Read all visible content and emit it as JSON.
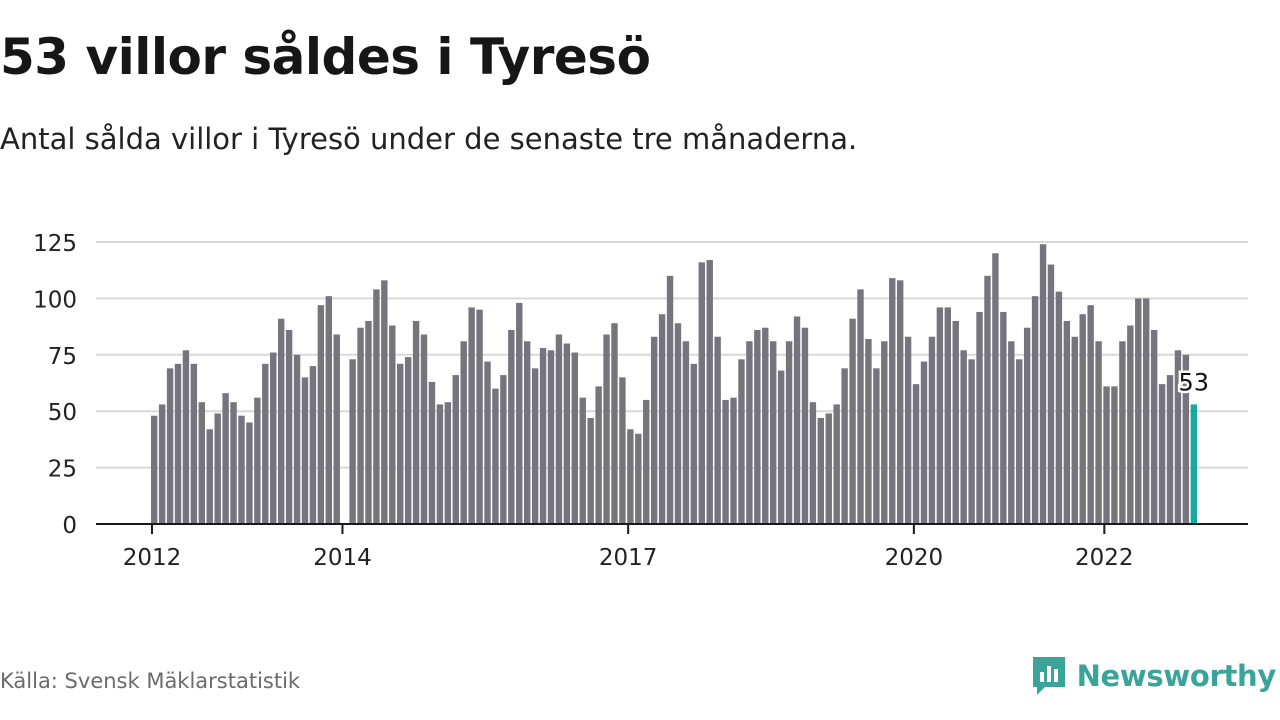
{
  "header": {
    "title": "53 villor såldes i Tyresö",
    "subtitle": "Antal sålda villor i Tyresö under de senaste tre månaderna."
  },
  "footer": {
    "source": "Källa: Svensk Mäklarstatistik",
    "brand": "Newsworthy",
    "brand_color": "#3aa39a"
  },
  "colors": {
    "bar": "#76757d",
    "highlight": "#17a99f",
    "grid": "#d9d9d9",
    "axis": "#1a1a1a"
  },
  "chart_data": {
    "type": "bar",
    "title": "53 villor såldes i Tyresö",
    "subtitle": "Antal sålda villor i Tyresö under de senaste tre månaderna.",
    "ylim": [
      0,
      125
    ],
    "yticks": [
      0,
      25,
      50,
      75,
      100,
      125
    ],
    "grid": true,
    "x_tick_labels": [
      "2012",
      "2014",
      "2017",
      "2020",
      "2022"
    ],
    "x_tick_bar_index": [
      0,
      24,
      60,
      96,
      120
    ],
    "series": [
      {
        "values": [
          48,
          53,
          69,
          71,
          77,
          71,
          54,
          42,
          49,
          58,
          54,
          48,
          45,
          56,
          71,
          76,
          91,
          86,
          75,
          65,
          70,
          97,
          101,
          84,
          0,
          73,
          87,
          90,
          104,
          108,
          88,
          71,
          74,
          90,
          84,
          63,
          53,
          54,
          66,
          81,
          96,
          95,
          72,
          60,
          66,
          86,
          98,
          81,
          69,
          78,
          77,
          84,
          80,
          76,
          56,
          47,
          61,
          84,
          89,
          65,
          42,
          40,
          55,
          83,
          93,
          110,
          89,
          81,
          71,
          116,
          117,
          83,
          55,
          56,
          73,
          81,
          86,
          87,
          81,
          68,
          81,
          92,
          87,
          54,
          47,
          49,
          53,
          69,
          91,
          104,
          82,
          69,
          81,
          109,
          108,
          83,
          62,
          72,
          83,
          96,
          96,
          90,
          77,
          73,
          94,
          110,
          120,
          94,
          81,
          73,
          87,
          101,
          124,
          115,
          103,
          90,
          83,
          93,
          97,
          81,
          61,
          61,
          81,
          88,
          100,
          100,
          86,
          62,
          66,
          77,
          75,
          53
        ]
      }
    ],
    "highlight": {
      "index": 131,
      "label": "53"
    }
  }
}
